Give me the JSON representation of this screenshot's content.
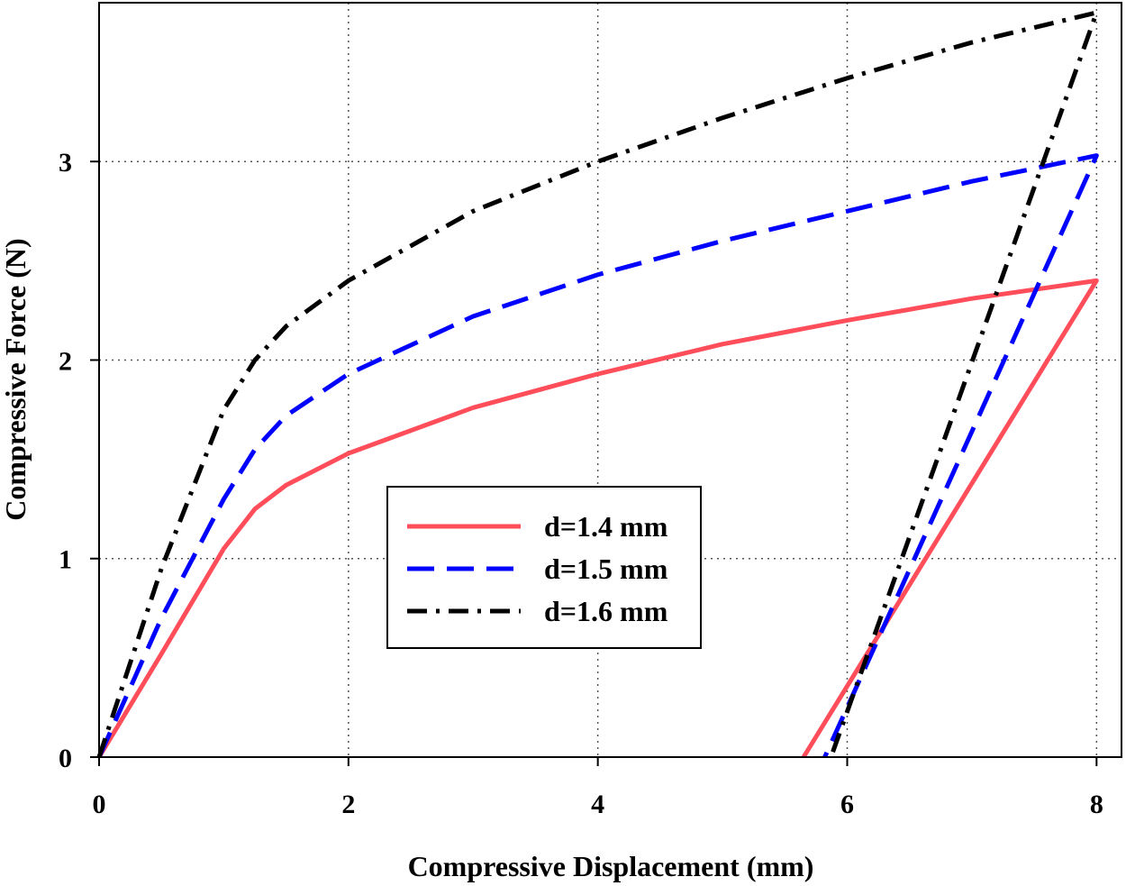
{
  "chart_data": {
    "type": "line",
    "title": "",
    "xlabel": "Compressive Displacement (mm)",
    "ylabel": "Compressive Force (N)",
    "xlim": [
      0,
      8.2
    ],
    "ylim": [
      0,
      3.8
    ],
    "xticks": [
      0,
      2,
      4,
      6,
      8
    ],
    "yticks": [
      0,
      1,
      2,
      3
    ],
    "grid": "dotted",
    "legend_position": "center",
    "series": [
      {
        "name": "d=1.4 mm",
        "color": "#ff4d5a",
        "style": "solid",
        "x": [
          0,
          0.5,
          1,
          1.25,
          1.5,
          2,
          3,
          4,
          5,
          6,
          7,
          8,
          5.65
        ],
        "y": [
          0,
          0.52,
          1.05,
          1.25,
          1.37,
          1.53,
          1.76,
          1.93,
          2.08,
          2.2,
          2.31,
          2.4,
          0
        ]
      },
      {
        "name": "d=1.5 mm",
        "color": "#0000ff",
        "style": "dashed",
        "x": [
          0,
          0.5,
          0.75,
          1,
          1.25,
          1.5,
          2,
          3,
          4,
          5,
          6,
          7,
          8,
          5.82
        ],
        "y": [
          0,
          0.7,
          1.0,
          1.3,
          1.55,
          1.72,
          1.93,
          2.22,
          2.43,
          2.6,
          2.75,
          2.9,
          3.03,
          0
        ]
      },
      {
        "name": "d=1.6 mm",
        "color": "#000000",
        "style": "dashdot",
        "x": [
          0,
          0.5,
          0.75,
          1,
          1.25,
          1.5,
          2,
          3,
          4,
          5,
          6,
          7,
          8,
          5.87
        ],
        "y": [
          0,
          0.95,
          1.35,
          1.75,
          2.0,
          2.17,
          2.4,
          2.75,
          3.0,
          3.22,
          3.42,
          3.6,
          3.75,
          0
        ]
      }
    ]
  }
}
